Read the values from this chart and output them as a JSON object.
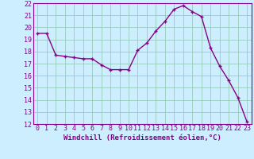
{
  "x": [
    0,
    1,
    2,
    3,
    4,
    5,
    6,
    7,
    8,
    9,
    10,
    11,
    12,
    13,
    14,
    15,
    16,
    17,
    18,
    19,
    20,
    21,
    22,
    23
  ],
  "y": [
    19.5,
    19.5,
    17.7,
    17.6,
    17.5,
    17.4,
    17.4,
    16.9,
    16.5,
    16.5,
    16.5,
    18.1,
    18.7,
    19.7,
    20.5,
    21.5,
    21.8,
    21.3,
    20.9,
    18.3,
    16.8,
    15.6,
    14.2,
    12.2
  ],
  "line_color": "#880088",
  "marker": "+",
  "marker_size": 3.5,
  "marker_lw": 1.0,
  "line_width": 1.0,
  "bg_color": "#cceeff",
  "grid_color": "#99ccbb",
  "spine_color": "#880088",
  "tick_color": "#880088",
  "label_color": "#880088",
  "xlabel": "Windchill (Refroidissement éolien,°C)",
  "xlabel_fontsize": 6.5,
  "tick_fontsize": 6.0,
  "ylim": [
    12,
    22
  ],
  "xlim": [
    -0.5,
    23.5
  ],
  "yticks": [
    12,
    13,
    14,
    15,
    16,
    17,
    18,
    19,
    20,
    21,
    22
  ],
  "xticks": [
    0,
    1,
    2,
    3,
    4,
    5,
    6,
    7,
    8,
    9,
    10,
    11,
    12,
    13,
    14,
    15,
    16,
    17,
    18,
    19,
    20,
    21,
    22,
    23
  ]
}
